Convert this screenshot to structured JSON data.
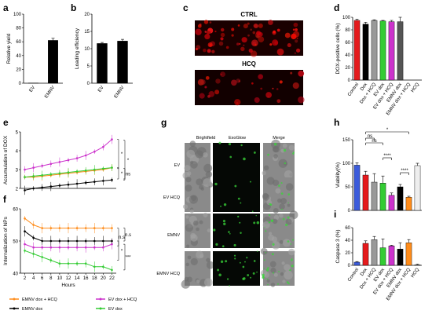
{
  "panels": {
    "a": {
      "label": "a",
      "type": "bar",
      "categories": [
        "EV",
        "EMNV"
      ],
      "values": [
        0.3,
        62
      ],
      "errors": [
        0,
        3
      ],
      "ylabel": "Relative yield",
      "ylim": [
        0,
        100
      ],
      "colors": [
        "#000000",
        "#000000"
      ]
    },
    "b": {
      "label": "b",
      "type": "bar",
      "categories": [
        "EV",
        "EMNV"
      ],
      "values": [
        11.5,
        12.2
      ],
      "errors": [
        0.3,
        0.5
      ],
      "ylabel": "Loading efficiency",
      "ylim": [
        0,
        20
      ],
      "colors": [
        "#000000",
        "#000000"
      ]
    },
    "c": {
      "label": "c",
      "type": "image",
      "titles": [
        "CTRL",
        "HCQ"
      ]
    },
    "d": {
      "label": "d",
      "type": "bar",
      "categories": [
        "Control",
        "Dox",
        "Dox + HCQ",
        "EV dox",
        "EV dox + HCQ",
        "EMNV dox",
        "EMNV dox + HCQ",
        "HCQ"
      ],
      "values": [
        95,
        89,
        95,
        94,
        93,
        93,
        0,
        0
      ],
      "errors": [
        2,
        3,
        1,
        1,
        2,
        7,
        0,
        0
      ],
      "ylabel": "DOX-positive cells (%)",
      "ylim": [
        0,
        100
      ],
      "colors": [
        "#e41a1c",
        "#000000",
        "#999999",
        "#33cc33",
        "#cc33cc",
        "#555555",
        "#ff8c1a",
        "#999999"
      ]
    },
    "e": {
      "label": "e",
      "type": "line",
      "ylabel": "Accumulation of DOX",
      "ylim": [
        2,
        5
      ],
      "series": [
        {
          "name": "EMNV dox + HCQ",
          "color": "#ff8c1a",
          "values": [
            2.6,
            2.6,
            2.65,
            2.7,
            2.75,
            2.8,
            2.85,
            2.9,
            2.95,
            3.0,
            3.1
          ]
        },
        {
          "name": "EV dox + HCQ",
          "color": "#cc33cc",
          "values": [
            3.0,
            3.1,
            3.2,
            3.3,
            3.4,
            3.5,
            3.6,
            3.75,
            3.95,
            4.2,
            4.6
          ]
        },
        {
          "name": "EMNV dox",
          "color": "#000000",
          "values": [
            1.9,
            2.0,
            2.05,
            2.1,
            2.15,
            2.2,
            2.25,
            2.3,
            2.35,
            2.4,
            2.45
          ]
        },
        {
          "name": "EV dox",
          "color": "#33cc33",
          "values": [
            2.6,
            2.65,
            2.7,
            2.75,
            2.8,
            2.85,
            2.9,
            2.95,
            3.0,
            3.05,
            3.1
          ]
        }
      ],
      "sig": [
        "*",
        "*",
        "*",
        "ns"
      ]
    },
    "f": {
      "label": "f",
      "type": "line",
      "ylabel": "Internalization of NPs",
      "xlabel": "Hours",
      "ylim": [
        40,
        60
      ],
      "x": [
        2,
        4,
        6,
        8,
        10,
        12,
        14,
        16,
        18,
        20,
        22
      ],
      "series": [
        {
          "name": "EMNV dox + HCQ",
          "color": "#ff8c1a",
          "values": [
            57,
            55,
            54,
            54,
            54,
            54,
            54,
            54,
            54,
            54,
            54
          ]
        },
        {
          "name": "EV dox + HCQ",
          "color": "#cc33cc",
          "values": [
            49,
            48,
            48,
            48,
            48,
            48,
            48,
            48,
            48,
            48,
            49
          ]
        },
        {
          "name": "EMNV dox",
          "color": "#000000",
          "values": [
            53,
            51,
            50,
            50,
            50,
            50,
            50,
            50,
            50,
            50,
            50
          ]
        },
        {
          "name": "EV dox",
          "color": "#33cc33",
          "values": [
            47,
            46,
            45,
            44,
            43,
            43,
            43,
            43,
            42,
            42,
            41
          ]
        }
      ],
      "sig": [
        "n.s",
        "n.s",
        "*",
        "***"
      ]
    },
    "g": {
      "label": "g",
      "type": "image",
      "col_titles": [
        "Brightfield",
        "ExoGlow",
        "Merge"
      ],
      "row_titles": [
        "EV",
        "EV HCQ",
        "EMNV",
        "EMNV HCQ"
      ]
    },
    "h": {
      "label": "h",
      "type": "bar",
      "categories": [
        "Control",
        "Dox",
        "Dox + HCQ",
        "EV dox",
        "EV dox + HCQ",
        "EMNV dox",
        "EMNV dox + HCQ",
        "HCQ"
      ],
      "values": [
        96,
        75,
        60,
        58,
        32,
        50,
        28,
        95
      ],
      "errors": [
        5,
        8,
        18,
        15,
        5,
        5,
        2,
        5
      ],
      "ylabel": "Viability(%)",
      "ylim": [
        0,
        150
      ],
      "colors": [
        "#3b5bdb",
        "#e41a1c",
        "#999999",
        "#33cc33",
        "#cc33cc",
        "#000000",
        "#ff8c1a",
        "#eeeeee"
      ],
      "sig": [
        "*",
        "ns",
        "ns",
        "****",
        "****"
      ]
    },
    "i": {
      "label": "i",
      "type": "bar",
      "categories": [
        "Control",
        "Dox",
        "Dox + HCQ",
        "EV dox",
        "EV dox + HCQ",
        "EMNV dox",
        "EMNV dox + HCQ",
        "HCQ"
      ],
      "values": [
        5,
        35,
        41,
        28,
        31,
        26,
        36,
        1
      ],
      "errors": [
        1,
        4,
        5,
        14,
        1,
        10,
        5,
        1
      ],
      "ylabel": "Caspase 3 (%)",
      "ylim": [
        0,
        60
      ],
      "colors": [
        "#3b5bdb",
        "#e41a1c",
        "#999999",
        "#33cc33",
        "#cc33cc",
        "#000000",
        "#ff8c1a",
        "#eeeeee"
      ]
    }
  },
  "legend": [
    {
      "name": "EMNV dox + HCQ",
      "color": "#ff8c1a"
    },
    {
      "name": "EV dox + HCQ",
      "color": "#cc33cc"
    },
    {
      "name": "EMNV dox",
      "color": "#000000"
    },
    {
      "name": "EV dox",
      "color": "#33cc33"
    }
  ],
  "ticks": {
    "a_y": [
      "0",
      "20",
      "40",
      "60",
      "80",
      "100"
    ],
    "b_y": [
      "0",
      "5",
      "10",
      "15",
      "20"
    ],
    "d_y": [
      "0",
      "20",
      "40",
      "60",
      "80",
      "100"
    ],
    "e_y": [
      "2",
      "3",
      "4",
      "5"
    ],
    "f_y": [
      "40",
      "50",
      "60"
    ],
    "f_x": [
      "2",
      "4",
      "6",
      "8",
      "10",
      "12",
      "14",
      "16",
      "18",
      "20",
      "22"
    ],
    "h_y": [
      "0",
      "50",
      "100",
      "150"
    ],
    "i_y": [
      "0",
      "20",
      "40",
      "60"
    ]
  },
  "chart_data": [
    {
      "type": "bar",
      "categories": [
        "EV",
        "EMNV"
      ],
      "values": [
        0.3,
        62
      ],
      "ylabel": "Relative yield",
      "ylim": [
        0,
        100
      ]
    },
    {
      "type": "bar",
      "categories": [
        "EV",
        "EMNV"
      ],
      "values": [
        11.5,
        12.2
      ],
      "ylabel": "Loading efficiency",
      "ylim": [
        0,
        20
      ]
    },
    {
      "type": "bar",
      "categories": [
        "Control",
        "Dox",
        "Dox + HCQ",
        "EV dox",
        "EV dox + HCQ",
        "EMNV dox",
        "EMNV dox + HCQ",
        "HCQ"
      ],
      "values": [
        95,
        89,
        95,
        94,
        93,
        93,
        0,
        0
      ],
      "ylabel": "DOX-positive cells (%)",
      "ylim": [
        0,
        100
      ]
    },
    {
      "type": "line",
      "ylabel": "Accumulation of DOX",
      "ylim": [
        2,
        5
      ],
      "series": [
        {
          "name": "EMNV dox + HCQ",
          "values": [
            2.6,
            2.6,
            2.65,
            2.7,
            2.75,
            2.8,
            2.85,
            2.9,
            2.95,
            3.0,
            3.1
          ]
        },
        {
          "name": "EV dox + HCQ",
          "values": [
            3.0,
            3.1,
            3.2,
            3.3,
            3.4,
            3.5,
            3.6,
            3.75,
            3.95,
            4.2,
            4.6
          ]
        },
        {
          "name": "EMNV dox",
          "values": [
            1.9,
            2.0,
            2.05,
            2.1,
            2.15,
            2.2,
            2.25,
            2.3,
            2.35,
            2.4,
            2.45
          ]
        },
        {
          "name": "EV dox",
          "values": [
            2.6,
            2.65,
            2.7,
            2.75,
            2.8,
            2.85,
            2.9,
            2.95,
            3.0,
            3.05,
            3.1
          ]
        }
      ]
    },
    {
      "type": "line",
      "xlabel": "Hours",
      "ylabel": "Internalization of NPs",
      "x": [
        2,
        4,
        6,
        8,
        10,
        12,
        14,
        16,
        18,
        20,
        22
      ],
      "ylim": [
        40,
        60
      ],
      "series": [
        {
          "name": "EMNV dox + HCQ",
          "values": [
            57,
            55,
            54,
            54,
            54,
            54,
            54,
            54,
            54,
            54,
            54
          ]
        },
        {
          "name": "EV dox + HCQ",
          "values": [
            49,
            48,
            48,
            48,
            48,
            48,
            48,
            48,
            48,
            48,
            49
          ]
        },
        {
          "name": "EMNV dox",
          "values": [
            53,
            51,
            50,
            50,
            50,
            50,
            50,
            50,
            50,
            50,
            50
          ]
        },
        {
          "name": "EV dox",
          "values": [
            47,
            46,
            45,
            44,
            43,
            43,
            43,
            43,
            42,
            42,
            41
          ]
        }
      ]
    },
    {
      "type": "bar",
      "categories": [
        "Control",
        "Dox",
        "Dox + HCQ",
        "EV dox",
        "EV dox + HCQ",
        "EMNV dox",
        "EMNV dox + HCQ",
        "HCQ"
      ],
      "values": [
        96,
        75,
        60,
        58,
        32,
        50,
        28,
        95
      ],
      "ylabel": "Viability(%)",
      "ylim": [
        0,
        150
      ]
    },
    {
      "type": "bar",
      "categories": [
        "Control",
        "Dox",
        "Dox + HCQ",
        "EV dox",
        "EV dox + HCQ",
        "EMNV dox",
        "EMNV dox + HCQ",
        "HCQ"
      ],
      "values": [
        5,
        35,
        41,
        28,
        31,
        26,
        36,
        1
      ],
      "ylabel": "Caspase 3 (%)",
      "ylim": [
        0,
        60
      ]
    }
  ]
}
